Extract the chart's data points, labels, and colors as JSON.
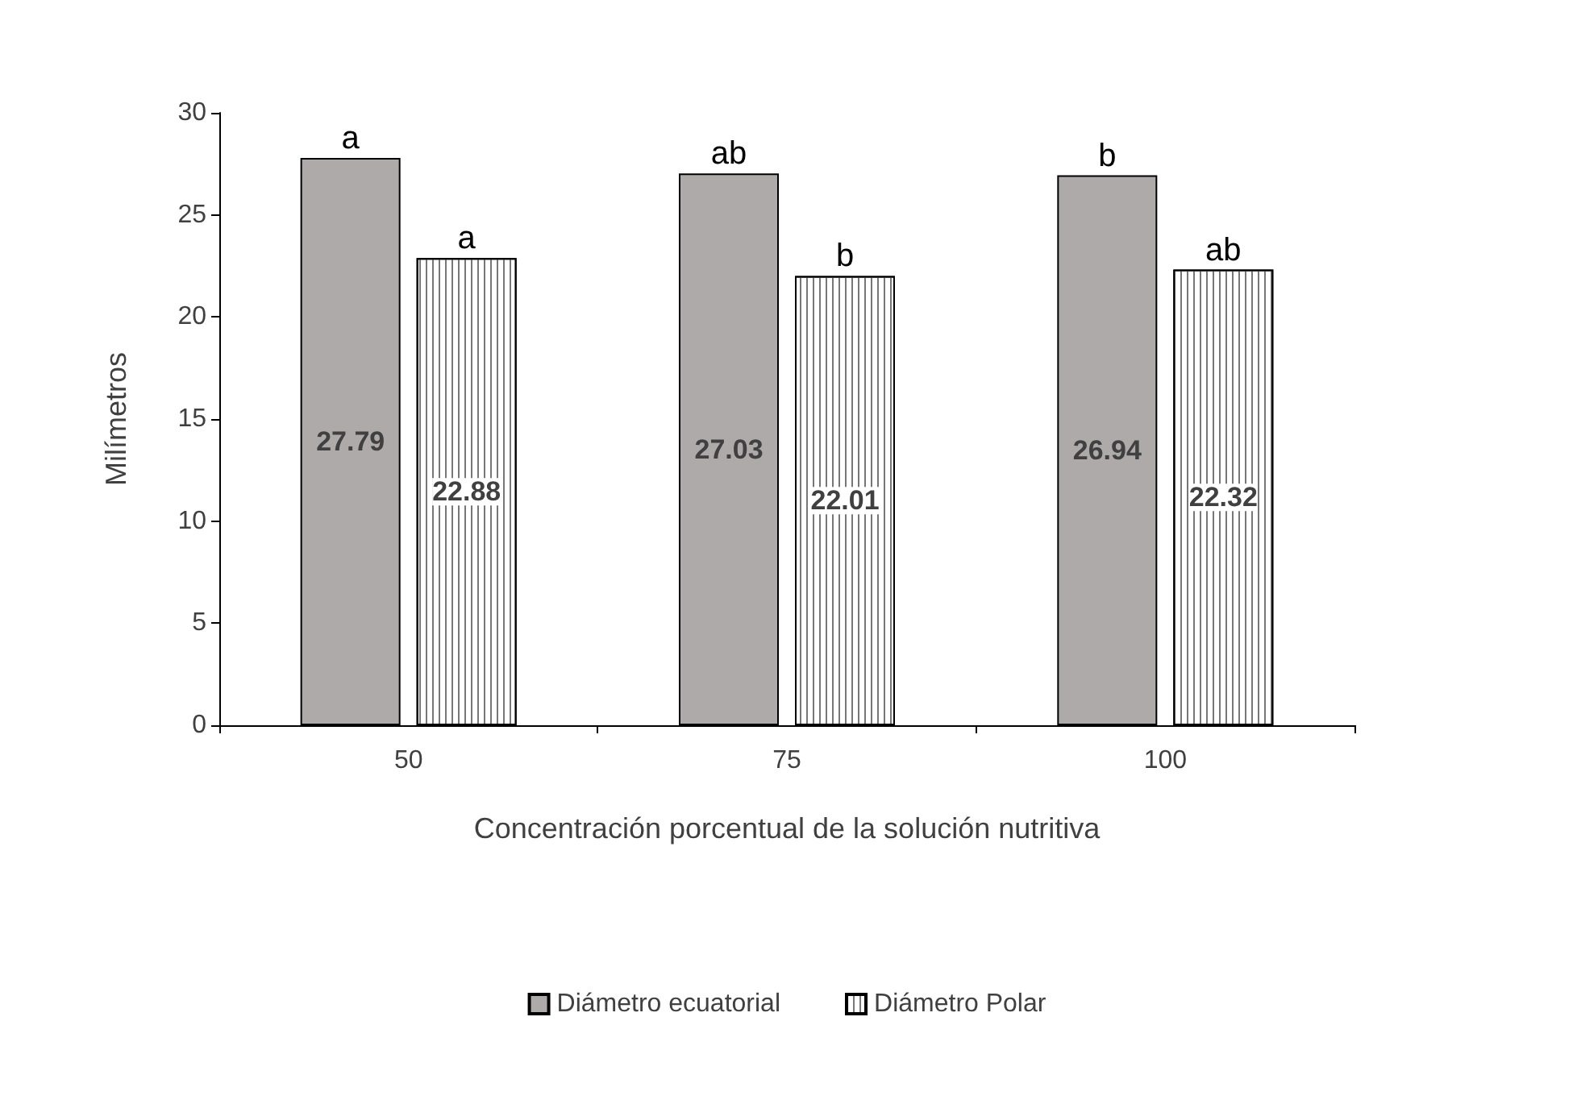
{
  "chart_data": {
    "type": "bar",
    "xlabel": "Concentración porcentual de la solución nutritiva",
    "ylabel": "Milímetros",
    "categories": [
      "50",
      "75",
      "100"
    ],
    "series": [
      {
        "name": "Diámetro ecuatorial",
        "color": "#aeaaaa",
        "values": [
          27.79,
          27.03,
          26.94
        ]
      },
      {
        "name": "Diámetro Polar",
        "color": "#ffffff",
        "values": [
          22.88,
          22.01,
          22.32
        ]
      }
    ],
    "ylim": [
      0,
      30
    ],
    "yticks": [
      0,
      5,
      10,
      15,
      20,
      25,
      30
    ],
    "grid": false,
    "legend": "bottom",
    "data_labels": true,
    "annotations": [
      "a",
      "a",
      "ab",
      "b",
      "b",
      "ab"
    ]
  }
}
